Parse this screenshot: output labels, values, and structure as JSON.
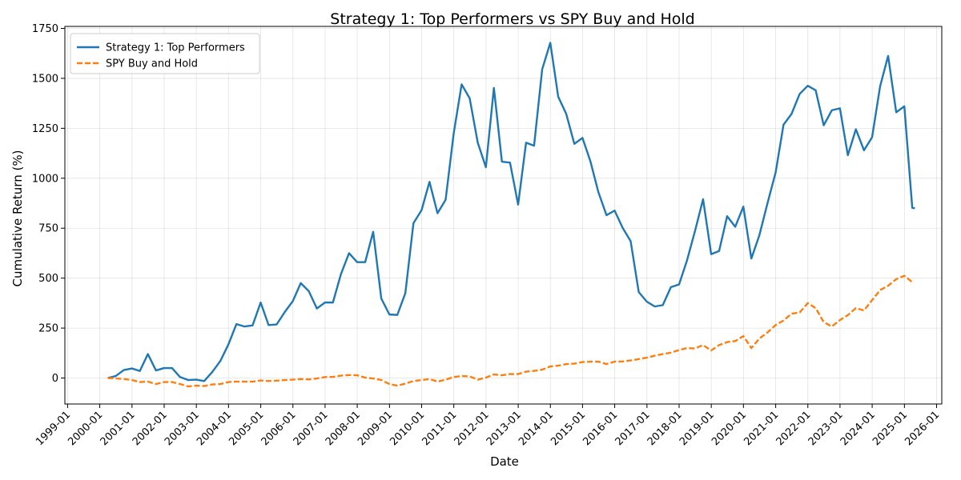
{
  "chart_data": {
    "type": "line",
    "title": "Strategy 1: Top Performers vs SPY Buy and Hold",
    "xlabel": "Date",
    "ylabel": "Cumulative Return (%)",
    "x_axis_type": "date",
    "xlim": [
      "1998-12-01",
      "2026-03-01"
    ],
    "ylim": [
      -130,
      1760
    ],
    "y_ticks": [
      0,
      250,
      500,
      750,
      1000,
      1250,
      1500,
      1750
    ],
    "x_tick_labels": [
      "1999-01",
      "2000-01",
      "2001-01",
      "2002-01",
      "2003-01",
      "2004-01",
      "2005-01",
      "2006-01",
      "2007-01",
      "2008-01",
      "2009-01",
      "2010-01",
      "2011-01",
      "2012-01",
      "2013-01",
      "2014-01",
      "2015-01",
      "2016-01",
      "2017-01",
      "2018-01",
      "2019-01",
      "2020-01",
      "2021-01",
      "2022-01",
      "2023-01",
      "2024-01",
      "2025-01",
      "2026-01"
    ],
    "grid": true,
    "legend_position": "top-left",
    "series": [
      {
        "name": "Strategy 1: Top Performers",
        "color": "#1f77b4",
        "dash": "solid",
        "points": [
          [
            "2000-03-31",
            0
          ],
          [
            "2000-06-30",
            10
          ],
          [
            "2000-09-30",
            40
          ],
          [
            "2000-12-31",
            48
          ],
          [
            "2001-03-31",
            35
          ],
          [
            "2001-06-30",
            120
          ],
          [
            "2001-09-30",
            38
          ],
          [
            "2001-12-31",
            50
          ],
          [
            "2002-03-31",
            50
          ],
          [
            "2002-06-30",
            5
          ],
          [
            "2002-09-30",
            -10
          ],
          [
            "2002-12-31",
            -8
          ],
          [
            "2003-03-31",
            -15
          ],
          [
            "2003-06-30",
            30
          ],
          [
            "2003-09-30",
            85
          ],
          [
            "2003-12-31",
            168
          ],
          [
            "2004-03-31",
            270
          ],
          [
            "2004-06-30",
            258
          ],
          [
            "2004-09-30",
            263
          ],
          [
            "2004-12-31",
            378
          ],
          [
            "2005-03-31",
            265
          ],
          [
            "2005-06-30",
            268
          ],
          [
            "2005-09-30",
            330
          ],
          [
            "2005-12-31",
            385
          ],
          [
            "2006-03-31",
            475
          ],
          [
            "2006-06-30",
            435
          ],
          [
            "2006-09-30",
            348
          ],
          [
            "2006-12-31",
            378
          ],
          [
            "2007-03-31",
            378
          ],
          [
            "2007-06-30",
            520
          ],
          [
            "2007-09-30",
            625
          ],
          [
            "2007-12-31",
            580
          ],
          [
            "2008-03-31",
            580
          ],
          [
            "2008-06-30",
            732
          ],
          [
            "2008-09-30",
            398
          ],
          [
            "2008-12-31",
            318
          ],
          [
            "2009-03-31",
            316
          ],
          [
            "2009-06-30",
            425
          ],
          [
            "2009-09-30",
            775
          ],
          [
            "2009-12-31",
            840
          ],
          [
            "2010-03-31",
            982
          ],
          [
            "2010-06-30",
            825
          ],
          [
            "2010-09-30",
            892
          ],
          [
            "2010-12-31",
            1225
          ],
          [
            "2011-03-31",
            1470
          ],
          [
            "2011-06-30",
            1400
          ],
          [
            "2011-09-30",
            1178
          ],
          [
            "2011-12-31",
            1055
          ],
          [
            "2012-03-31",
            1452
          ],
          [
            "2012-06-30",
            1083
          ],
          [
            "2012-09-30",
            1078
          ],
          [
            "2012-12-31",
            868
          ],
          [
            "2013-03-31",
            1178
          ],
          [
            "2013-06-30",
            1163
          ],
          [
            "2013-09-30",
            1545
          ],
          [
            "2013-12-31",
            1678
          ],
          [
            "2014-03-31",
            1408
          ],
          [
            "2014-06-30",
            1322
          ],
          [
            "2014-09-30",
            1172
          ],
          [
            "2014-12-31",
            1202
          ],
          [
            "2015-03-31",
            1085
          ],
          [
            "2015-06-30",
            930
          ],
          [
            "2015-09-30",
            815
          ],
          [
            "2015-12-31",
            838
          ],
          [
            "2016-03-31",
            752
          ],
          [
            "2016-06-30",
            685
          ],
          [
            "2016-09-30",
            430
          ],
          [
            "2016-12-31",
            382
          ],
          [
            "2017-03-31",
            358
          ],
          [
            "2017-06-30",
            365
          ],
          [
            "2017-09-30",
            455
          ],
          [
            "2017-12-31",
            468
          ],
          [
            "2018-03-31",
            588
          ],
          [
            "2018-06-30",
            735
          ],
          [
            "2018-09-30",
            895
          ],
          [
            "2018-12-31",
            620
          ],
          [
            "2019-03-31",
            636
          ],
          [
            "2019-06-30",
            810
          ],
          [
            "2019-09-30",
            757
          ],
          [
            "2019-12-31",
            858
          ],
          [
            "2020-03-31",
            598
          ],
          [
            "2020-06-30",
            715
          ],
          [
            "2020-09-30",
            875
          ],
          [
            "2020-12-31",
            1028
          ],
          [
            "2021-03-31",
            1268
          ],
          [
            "2021-06-30",
            1322
          ],
          [
            "2021-09-30",
            1422
          ],
          [
            "2021-12-31",
            1463
          ],
          [
            "2022-03-31",
            1440
          ],
          [
            "2022-06-30",
            1265
          ],
          [
            "2022-09-30",
            1340
          ],
          [
            "2022-12-31",
            1350
          ],
          [
            "2023-03-31",
            1115
          ],
          [
            "2023-06-30",
            1245
          ],
          [
            "2023-09-30",
            1140
          ],
          [
            "2023-12-31",
            1205
          ],
          [
            "2024-03-31",
            1460
          ],
          [
            "2024-06-30",
            1612
          ],
          [
            "2024-09-30",
            1330
          ],
          [
            "2024-12-31",
            1360
          ],
          [
            "2025-03-31",
            852
          ],
          [
            "2025-04-30",
            850
          ]
        ]
      },
      {
        "name": "SPY Buy and Hold",
        "color": "#ff7f0e",
        "dash": "dashed",
        "points": [
          [
            "2000-03-31",
            0
          ],
          [
            "2000-06-30",
            -2
          ],
          [
            "2000-09-30",
            -5
          ],
          [
            "2000-12-31",
            -10
          ],
          [
            "2001-03-31",
            -20
          ],
          [
            "2001-06-30",
            -18
          ],
          [
            "2001-09-30",
            -30
          ],
          [
            "2001-12-31",
            -20
          ],
          [
            "2002-03-31",
            -20
          ],
          [
            "2002-06-30",
            -30
          ],
          [
            "2002-09-30",
            -42
          ],
          [
            "2002-12-31",
            -38
          ],
          [
            "2003-03-31",
            -40
          ],
          [
            "2003-06-30",
            -32
          ],
          [
            "2003-09-30",
            -30
          ],
          [
            "2003-12-31",
            -20
          ],
          [
            "2004-03-31",
            -18
          ],
          [
            "2004-06-30",
            -18
          ],
          [
            "2004-09-30",
            -18
          ],
          [
            "2004-12-31",
            -12
          ],
          [
            "2005-03-31",
            -15
          ],
          [
            "2005-06-30",
            -13
          ],
          [
            "2005-09-30",
            -10
          ],
          [
            "2005-12-31",
            -8
          ],
          [
            "2006-03-31",
            -5
          ],
          [
            "2006-06-30",
            -7
          ],
          [
            "2006-09-30",
            -2
          ],
          [
            "2006-12-31",
            5
          ],
          [
            "2007-03-31",
            6
          ],
          [
            "2007-06-30",
            12
          ],
          [
            "2007-09-30",
            15
          ],
          [
            "2007-12-31",
            14
          ],
          [
            "2008-03-31",
            2
          ],
          [
            "2008-06-30",
            -2
          ],
          [
            "2008-09-30",
            -10
          ],
          [
            "2008-12-31",
            -30
          ],
          [
            "2009-03-31",
            -38
          ],
          [
            "2009-06-30",
            -28
          ],
          [
            "2009-09-30",
            -15
          ],
          [
            "2009-12-31",
            -10
          ],
          [
            "2010-03-31",
            -5
          ],
          [
            "2010-06-30",
            -18
          ],
          [
            "2010-09-30",
            -8
          ],
          [
            "2010-12-31",
            5
          ],
          [
            "2011-03-31",
            10
          ],
          [
            "2011-06-30",
            8
          ],
          [
            "2011-09-30",
            -8
          ],
          [
            "2011-12-31",
            2
          ],
          [
            "2012-03-31",
            18
          ],
          [
            "2012-06-30",
            14
          ],
          [
            "2012-09-30",
            20
          ],
          [
            "2012-12-31",
            20
          ],
          [
            "2013-03-31",
            32
          ],
          [
            "2013-06-30",
            36
          ],
          [
            "2013-09-30",
            42
          ],
          [
            "2013-12-31",
            58
          ],
          [
            "2014-03-31",
            62
          ],
          [
            "2014-06-30",
            70
          ],
          [
            "2014-09-30",
            72
          ],
          [
            "2014-12-31",
            80
          ],
          [
            "2015-03-31",
            82
          ],
          [
            "2015-06-30",
            82
          ],
          [
            "2015-09-30",
            70
          ],
          [
            "2015-12-31",
            82
          ],
          [
            "2016-03-31",
            83
          ],
          [
            "2016-06-30",
            88
          ],
          [
            "2016-09-30",
            95
          ],
          [
            "2016-12-31",
            102
          ],
          [
            "2017-03-31",
            112
          ],
          [
            "2017-06-30",
            120
          ],
          [
            "2017-09-30",
            127
          ],
          [
            "2017-12-31",
            140
          ],
          [
            "2018-03-31",
            150
          ],
          [
            "2018-06-30",
            148
          ],
          [
            "2018-09-30",
            165
          ],
          [
            "2018-12-31",
            138
          ],
          [
            "2019-03-31",
            165
          ],
          [
            "2019-06-30",
            180
          ],
          [
            "2019-09-30",
            185
          ],
          [
            "2019-12-31",
            210
          ],
          [
            "2020-03-31",
            150
          ],
          [
            "2020-06-30",
            198
          ],
          [
            "2020-09-30",
            228
          ],
          [
            "2020-12-31",
            265
          ],
          [
            "2021-03-31",
            288
          ],
          [
            "2021-06-30",
            322
          ],
          [
            "2021-09-30",
            328
          ],
          [
            "2021-12-31",
            375
          ],
          [
            "2022-03-31",
            350
          ],
          [
            "2022-06-30",
            280
          ],
          [
            "2022-09-30",
            258
          ],
          [
            "2022-12-31",
            290
          ],
          [
            "2023-03-31",
            315
          ],
          [
            "2023-06-30",
            350
          ],
          [
            "2023-09-30",
            338
          ],
          [
            "2023-12-31",
            390
          ],
          [
            "2024-03-31",
            440
          ],
          [
            "2024-06-30",
            462
          ],
          [
            "2024-09-30",
            495
          ],
          [
            "2024-12-31",
            512
          ],
          [
            "2025-03-31",
            480
          ]
        ]
      }
    ]
  }
}
